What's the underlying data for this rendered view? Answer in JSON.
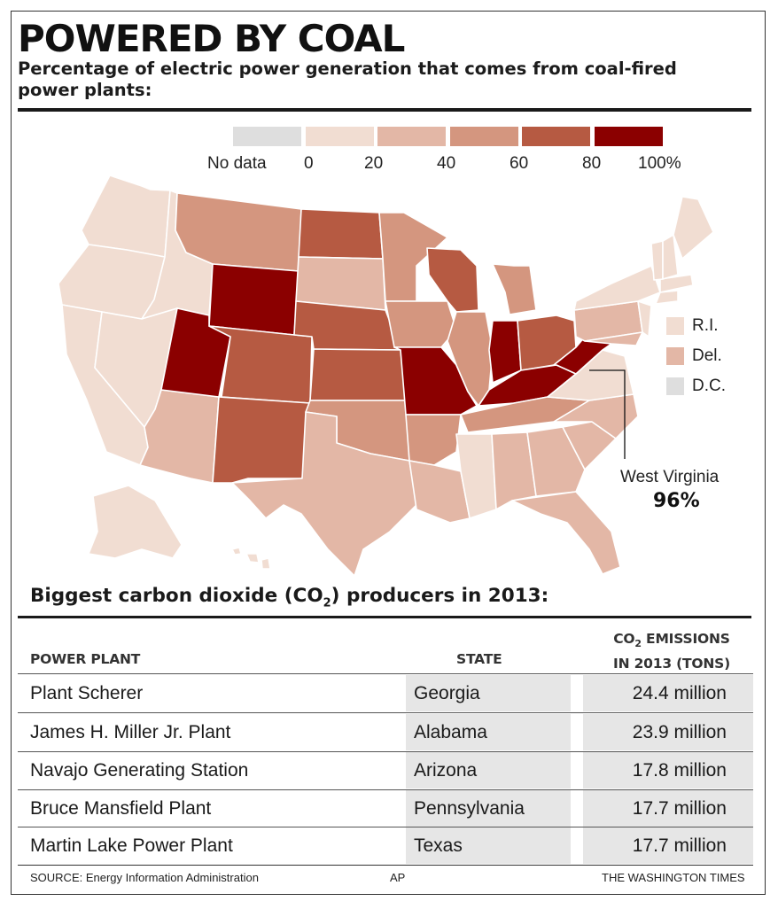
{
  "header": {
    "title": "POWERED BY COAL",
    "subtitle": "Percentage of electric power generation that comes from coal-fired power plants:"
  },
  "colors": {
    "no_data": "#dedede",
    "bin_0_20": "#f1ddd2",
    "bin_20_40": "#e3b7a6",
    "bin_40_60": "#d4967f",
    "bin_60_80": "#b65a42",
    "bin_80_100": "#8b0000",
    "state_border": "#ffffff"
  },
  "legend": {
    "no_data_label": "No data",
    "tick_labels": [
      "0",
      "20",
      "40",
      "60",
      "80",
      "100%"
    ]
  },
  "map": {
    "small_states": [
      {
        "label": "R.I.",
        "bin": "bin_0_20"
      },
      {
        "label": "Del.",
        "bin": "bin_20_40"
      },
      {
        "label": "D.C.",
        "bin": "no_data"
      }
    ],
    "callout": {
      "state": "West Virginia",
      "value": "96%"
    }
  },
  "chart_data": {
    "type": "choropleth",
    "unit": "percent of electric power generation from coal",
    "bins": [
      {
        "label": "No data"
      },
      {
        "range": [
          0,
          20
        ]
      },
      {
        "range": [
          20,
          40
        ]
      },
      {
        "range": [
          40,
          60
        ]
      },
      {
        "range": [
          60,
          80
        ]
      },
      {
        "range": [
          80,
          100
        ]
      }
    ],
    "highlight": {
      "state": "West Virginia",
      "value": 96
    }
  },
  "table": {
    "title_prefix": "Biggest carbon dioxide (CO",
    "title_sub": "2",
    "title_suffix": ") producers in 2013:",
    "columns": {
      "plant": "POWER PLANT",
      "state": "STATE",
      "emissions_line1_prefix": "CO",
      "emissions_line1_sub": "2",
      "emissions_line1_suffix": " EMISSIONS",
      "emissions_line2": "IN 2013 (TONS)"
    },
    "rows": [
      {
        "plant": "Plant Scherer",
        "state": "Georgia",
        "emissions": "24.4 million"
      },
      {
        "plant": "James H. Miller Jr. Plant",
        "state": "Alabama",
        "emissions": "23.9 million"
      },
      {
        "plant": "Navajo Generating Station",
        "state": "Arizona",
        "emissions": "17.8 million"
      },
      {
        "plant": "Bruce Mansfield Plant",
        "state": "Pennsylvania",
        "emissions": "17.7 million"
      },
      {
        "plant": "Martin Lake Power Plant",
        "state": "Texas",
        "emissions": "17.7 million"
      }
    ]
  },
  "footer": {
    "source": "SOURCE: Energy Information Administration",
    "agency": "AP",
    "publisher": "THE WASHINGTON TIMES"
  }
}
